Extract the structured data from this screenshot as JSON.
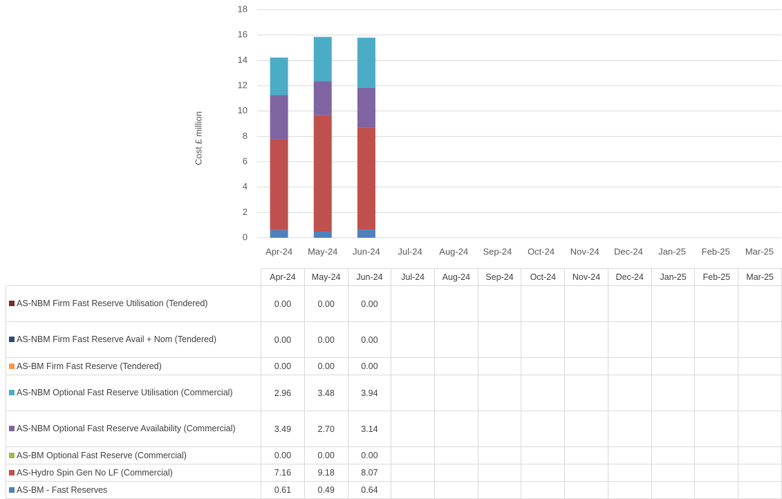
{
  "chart_data": {
    "type": "stacked_bar",
    "y_label": "Cost £ million",
    "categories": [
      "Apr-24",
      "May-24",
      "Jun-24",
      "Jul-24",
      "Aug-24",
      "Sep-24",
      "Oct-24",
      "Nov-24",
      "Dec-24",
      "Jan-25",
      "Feb-25",
      "Mar-25"
    ],
    "ylim": [
      0,
      18
    ],
    "yticks": [
      0,
      2,
      4,
      6,
      8,
      10,
      12,
      14,
      16,
      18
    ],
    "grid": true,
    "series": [
      {
        "name": "AS-NBM Firm Fast Reserve Utilisation (Tendered)",
        "color": "#772c2a",
        "values": [
          0,
          0,
          0,
          null,
          null,
          null,
          null,
          null,
          null,
          null,
          null,
          null
        ],
        "value_labels": [
          "0.00",
          "0.00",
          "0.00",
          null,
          null,
          null,
          null,
          null,
          null,
          null,
          null,
          null
        ]
      },
      {
        "name": "AS-NBM Firm Fast Reserve Avail + Nom (Tendered)",
        "color": "#2c4d75",
        "values": [
          0,
          0,
          0,
          null,
          null,
          null,
          null,
          null,
          null,
          null,
          null,
          null
        ],
        "value_labels": [
          "0.00",
          "0.00",
          "0.00",
          null,
          null,
          null,
          null,
          null,
          null,
          null,
          null,
          null
        ]
      },
      {
        "name": "AS-BM Firm Fast Reserve (Tendered)",
        "color": "#f79646",
        "values": [
          0,
          0,
          0,
          null,
          null,
          null,
          null,
          null,
          null,
          null,
          null,
          null
        ],
        "value_labels": [
          "0.00",
          "0.00",
          "0.00",
          null,
          null,
          null,
          null,
          null,
          null,
          null,
          null,
          null
        ]
      },
      {
        "name": "AS-NBM Optional Fast Reserve Utilisation (Commercial)",
        "color": "#4bacc6",
        "values": [
          2.96,
          3.48,
          3.94,
          null,
          null,
          null,
          null,
          null,
          null,
          null,
          null,
          null
        ],
        "value_labels": [
          "2.96",
          "3.48",
          "3.94",
          null,
          null,
          null,
          null,
          null,
          null,
          null,
          null,
          null
        ]
      },
      {
        "name": "AS-NBM Optional Fast Reserve Availability (Commercial)",
        "color": "#8064a2",
        "values": [
          3.49,
          2.7,
          3.14,
          null,
          null,
          null,
          null,
          null,
          null,
          null,
          null,
          null
        ],
        "value_labels": [
          "3.49",
          "2.70",
          "3.14",
          null,
          null,
          null,
          null,
          null,
          null,
          null,
          null,
          null
        ]
      },
      {
        "name": "AS-BM Optional Fast Reserve (Commercial)",
        "color": "#9bbb59",
        "values": [
          0,
          0,
          0,
          null,
          null,
          null,
          null,
          null,
          null,
          null,
          null,
          null
        ],
        "value_labels": [
          "0.00",
          "0.00",
          "0.00",
          null,
          null,
          null,
          null,
          null,
          null,
          null,
          null,
          null
        ]
      },
      {
        "name": "AS-Hydro Spin Gen No LF (Commercial)",
        "color": "#c0504d",
        "values": [
          7.16,
          9.18,
          8.07,
          null,
          null,
          null,
          null,
          null,
          null,
          null,
          null,
          null
        ],
        "value_labels": [
          "7.16",
          "9.18",
          "8.07",
          null,
          null,
          null,
          null,
          null,
          null,
          null,
          null,
          null
        ]
      },
      {
        "name": "AS-BM - Fast Reserves",
        "color": "#4f81bd",
        "values": [
          0.61,
          0.49,
          0.64,
          null,
          null,
          null,
          null,
          null,
          null,
          null,
          null,
          null
        ],
        "value_labels": [
          "0.61",
          "0.49",
          "0.64",
          null,
          null,
          null,
          null,
          null,
          null,
          null,
          null,
          null
        ]
      }
    ]
  }
}
